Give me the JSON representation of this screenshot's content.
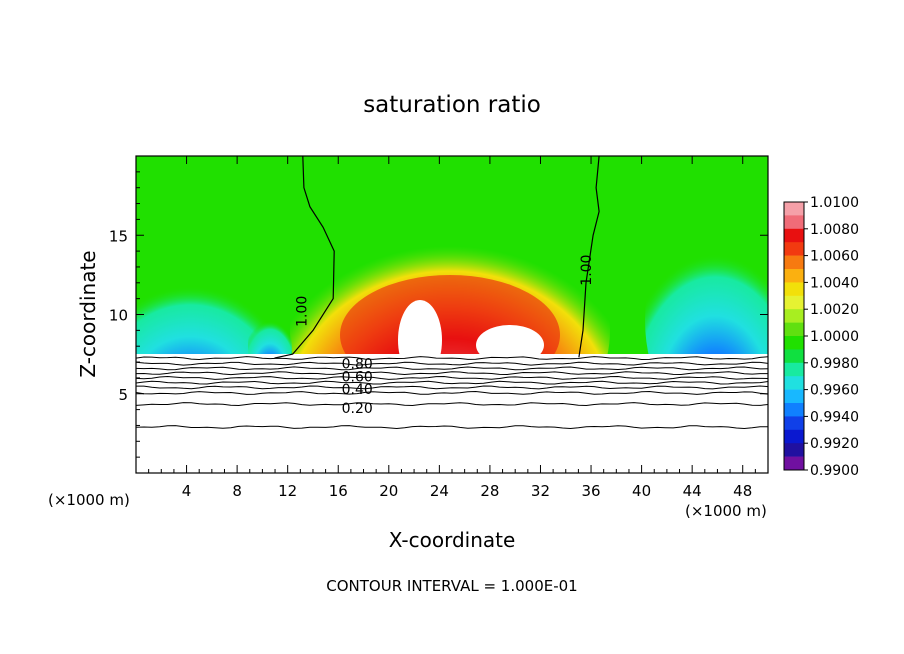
{
  "chart_data": {
    "type": "heatmap",
    "title": "saturation ratio",
    "xlabel": "X-coordinate",
    "ylabel": "Z-coordinate",
    "x_unit_left": "(×1000 m)",
    "x_unit_right": "(×1000 m)",
    "xlim": [
      0,
      50
    ],
    "ylim": [
      0,
      20
    ],
    "x_ticks": [
      "4",
      "8",
      "12",
      "16",
      "20",
      "24",
      "28",
      "32",
      "36",
      "40",
      "44",
      "48"
    ],
    "x_tick_values": [
      4,
      8,
      12,
      16,
      20,
      24,
      28,
      32,
      36,
      40,
      44,
      48
    ],
    "y_ticks": [
      "5",
      "10",
      "15"
    ],
    "y_tick_values": [
      5,
      10,
      15
    ],
    "footer": "CONTOUR INTERVAL = 1.000E-01",
    "colorbar": {
      "labels": [
        "1.0100",
        "1.0080",
        "1.0060",
        "1.0040",
        "1.0020",
        "1.0000",
        "0.9980",
        "0.9960",
        "0.9940",
        "0.9920",
        "0.9900"
      ],
      "label_values": [
        1.01,
        1.008,
        1.006,
        1.004,
        1.002,
        1.0,
        0.998,
        0.996,
        0.994,
        0.992,
        0.99
      ],
      "bands": [
        "#f5a0a8",
        "#f06c78",
        "#e81010",
        "#f23a10",
        "#f77a10",
        "#fbb010",
        "#f2e00a",
        "#e6f232",
        "#a8ee20",
        "#60e010",
        "#20e000",
        "#10e040",
        "#18eaa0",
        "#20e0e0",
        "#18b8ff",
        "#1080ff",
        "#1040e8",
        "#0a18d0",
        "#2010a0",
        "#7010a0"
      ]
    },
    "contour_labels": [
      {
        "text": "1.00",
        "x": 13.5,
        "y": 10.2
      },
      {
        "text": "1.00",
        "x": 36.0,
        "y": 12.8
      },
      {
        "text": "0.80",
        "x": 17.5,
        "y": 6.9
      },
      {
        "text": "0.60",
        "x": 17.5,
        "y": 6.1
      },
      {
        "text": "0.40",
        "x": 17.5,
        "y": 5.3
      },
      {
        "text": "0.20",
        "x": 17.5,
        "y": 4.1
      }
    ],
    "contour_levels_y": [
      7.25,
      6.9,
      6.6,
      6.3,
      6.0,
      5.7,
      5.4,
      5.05,
      4.35,
      2.9
    ]
  }
}
